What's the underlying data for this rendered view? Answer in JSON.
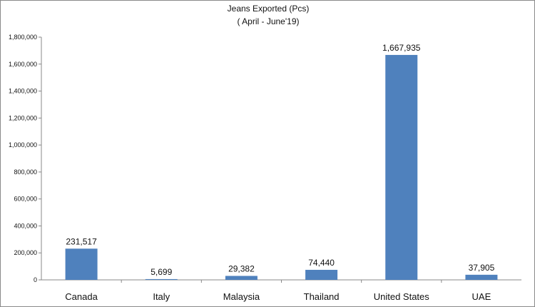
{
  "chart_data": {
    "type": "bar",
    "title": "Jeans Exported (Pcs)",
    "subtitle": "( April - June'19)",
    "categories": [
      "Canada",
      "Italy",
      "Malaysia",
      "Thailand",
      "United States",
      "UAE"
    ],
    "values": [
      231517,
      5699,
      29382,
      74440,
      1667935,
      37905
    ],
    "value_labels": [
      "231,517",
      "5,699",
      "29,382",
      "74,440",
      "1,667,935",
      "37,905"
    ],
    "yticks": [
      0,
      200000,
      400000,
      600000,
      800000,
      1000000,
      1200000,
      1400000,
      1600000,
      1800000
    ],
    "ytick_labels": [
      "0",
      "200,000",
      "400,000",
      "600,000",
      "800,000",
      "1,000,000",
      "1,200,000",
      "1,400,000",
      "1,600,000",
      "1,800,000"
    ],
    "ylim": [
      0,
      1800000
    ],
    "xlabel": "",
    "ylabel": "",
    "grid": false,
    "legend": "none",
    "bar_color": "#4f81bd"
  }
}
